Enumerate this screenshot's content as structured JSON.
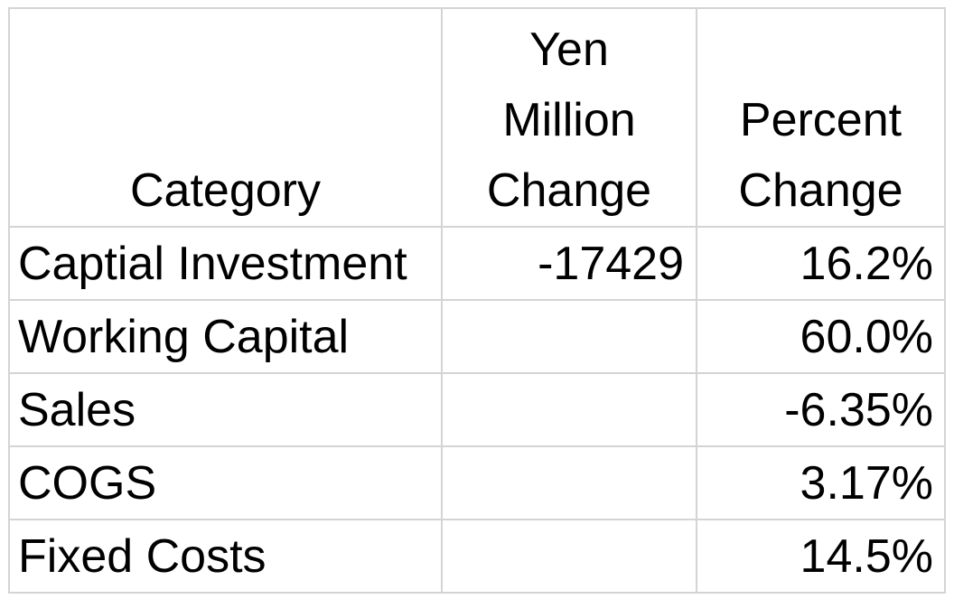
{
  "table": {
    "headers": {
      "category": [
        "Category"
      ],
      "yen_million_change": [
        "Yen",
        "Million",
        "Change"
      ],
      "percent_change": [
        "Percent",
        "Change"
      ]
    },
    "rows": [
      {
        "category": "Captial Investment",
        "yen_million_change": "-17429",
        "percent_change": "16.2%"
      },
      {
        "category": "Working Capital",
        "yen_million_change": "",
        "percent_change": "60.0%"
      },
      {
        "category": "Sales",
        "yen_million_change": "",
        "percent_change": "-6.35%"
      },
      {
        "category": "COGS",
        "yen_million_change": "",
        "percent_change": "3.17%"
      },
      {
        "category": "Fixed Costs",
        "yen_million_change": "",
        "percent_change": "14.5%"
      }
    ]
  }
}
